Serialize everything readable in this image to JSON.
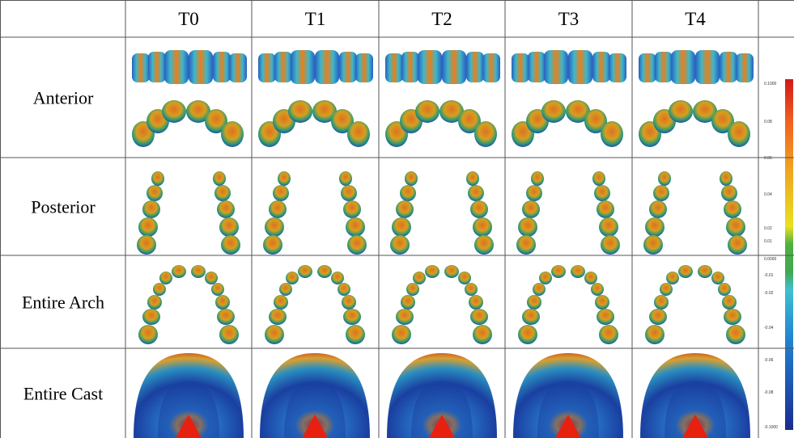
{
  "table": {
    "columns": [
      "T0",
      "T1",
      "T2",
      "T3",
      "T4"
    ],
    "rows": [
      "Anterior",
      "Posterior",
      "Entire Arch",
      "Entire Cast"
    ],
    "color_scale": {
      "labels": [
        "0.1000",
        "0.08",
        "0.06",
        "0.04",
        "0.02",
        "0.01",
        "0.0000",
        "-0.01",
        "-0.02",
        "-0.04",
        "-0.06",
        "-0.08",
        "-0.1000"
      ]
    }
  }
}
